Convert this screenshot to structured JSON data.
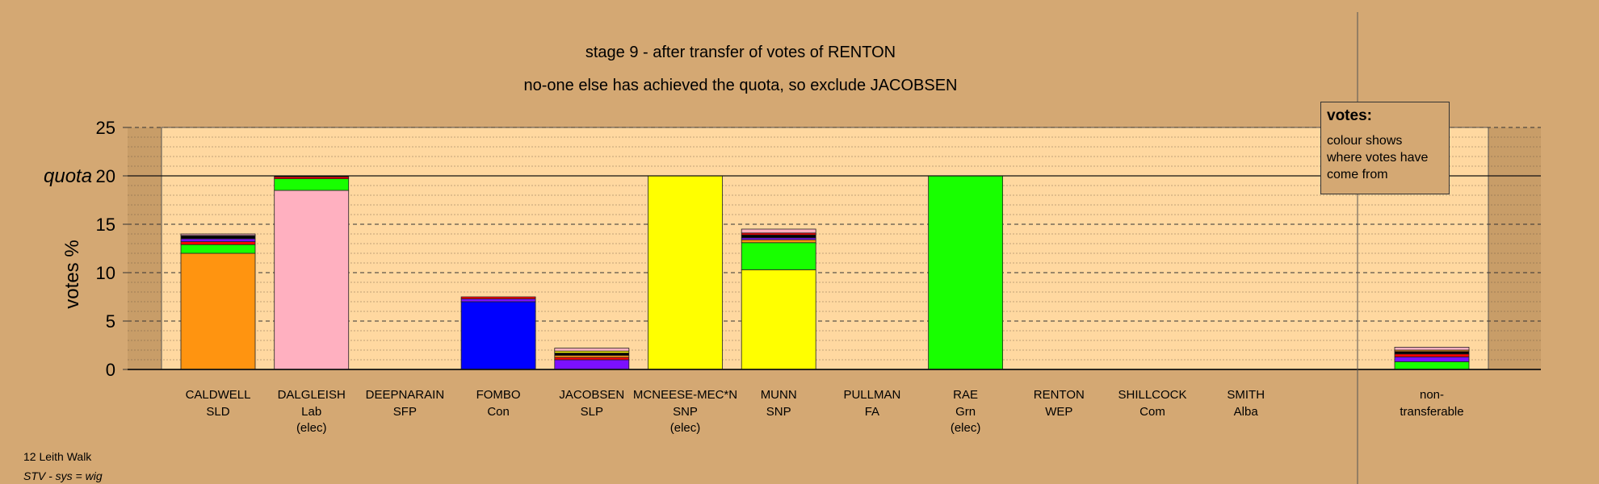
{
  "chart_data": {
    "type": "bar",
    "stacked": true,
    "title": "stage 9 - after transfer of votes of RENTON",
    "subtitle": "no-one else has achieved the quota, so exclude JACOBSEN",
    "ylabel": "votes %",
    "ylim": [
      0,
      25
    ],
    "yticks": [
      "0",
      "5",
      "10",
      "15",
      "20",
      "25"
    ],
    "quota": 20,
    "quota_label": "quota",
    "grid": true,
    "legend_position": "top-right",
    "candidates": [
      {
        "name": "CALDWELL",
        "party": "SLD",
        "note": "",
        "segments": [
          {
            "value": 12.0,
            "color": "#ff9410"
          },
          {
            "value": 0.9,
            "color": "#18ff00"
          },
          {
            "value": 0.3,
            "color": "#ff0000"
          },
          {
            "value": 0.3,
            "color": "#7b10ff"
          },
          {
            "value": 0.3,
            "color": "#000000"
          },
          {
            "value": 0.05,
            "color": "#ffff00"
          },
          {
            "value": 0.15,
            "color": "#ffb0c0"
          }
        ]
      },
      {
        "name": "DALGLEISH",
        "party": "Lab",
        "note": "(elec)",
        "segments": [
          {
            "value": 18.5,
            "color": "#ffb0c0"
          },
          {
            "value": 1.2,
            "color": "#18ff00"
          },
          {
            "value": 0.2,
            "color": "#ff0000"
          },
          {
            "value": 0.1,
            "color": "#000000"
          }
        ]
      },
      {
        "name": "DEEPNARAIN",
        "party": "SFP",
        "note": "",
        "segments": []
      },
      {
        "name": "FOMBO",
        "party": "Con",
        "note": "",
        "segments": [
          {
            "value": 7.0,
            "color": "#0000ff"
          },
          {
            "value": 0.3,
            "color": "#7b10ff"
          },
          {
            "value": 0.2,
            "color": "#ff0000"
          }
        ]
      },
      {
        "name": "JACOBSEN",
        "party": "SLP",
        "note": "",
        "segments": [
          {
            "value": 1.0,
            "color": "#7b10ff"
          },
          {
            "value": 0.25,
            "color": "#ff0000"
          },
          {
            "value": 0.2,
            "color": "#ff9410"
          },
          {
            "value": 0.25,
            "color": "#000000"
          },
          {
            "value": 0.2,
            "color": "#ffff00"
          },
          {
            "value": 0.3,
            "color": "#ffb0c0"
          }
        ]
      },
      {
        "name": "MCNEESE-MEC*N",
        "party": "SNP",
        "note": "(elec)",
        "segments": [
          {
            "value": 20.0,
            "color": "#ffff00"
          }
        ]
      },
      {
        "name": "MUNN",
        "party": "SNP",
        "note": "",
        "segments": [
          {
            "value": 10.3,
            "color": "#ffff00"
          },
          {
            "value": 2.8,
            "color": "#18ff00"
          },
          {
            "value": 0.3,
            "color": "#ff9410"
          },
          {
            "value": 0.2,
            "color": "#7b10ff"
          },
          {
            "value": 0.3,
            "color": "#000000"
          },
          {
            "value": 0.2,
            "color": "#ff0000"
          },
          {
            "value": 0.4,
            "color": "#ffb0c0"
          }
        ]
      },
      {
        "name": "PULLMAN",
        "party": "FA",
        "note": "",
        "segments": []
      },
      {
        "name": "RAE",
        "party": "Grn",
        "note": "(elec)",
        "segments": [
          {
            "value": 20.0,
            "color": "#18ff00"
          }
        ]
      },
      {
        "name": "RENTON",
        "party": "WEP",
        "note": "",
        "segments": []
      },
      {
        "name": "SHILLCOCK",
        "party": "Com",
        "note": "",
        "segments": []
      },
      {
        "name": "SMITH",
        "party": "Alba",
        "note": "",
        "segments": []
      }
    ],
    "non_transferable": {
      "line1": "non-",
      "line2": "transferable",
      "segments": [
        {
          "value": 0.8,
          "color": "#18ff00"
        },
        {
          "value": 0.5,
          "color": "#7b10ff"
        },
        {
          "value": 0.3,
          "color": "#ff0000"
        },
        {
          "value": 0.25,
          "color": "#000000"
        },
        {
          "value": 0.15,
          "color": "#ff9410"
        },
        {
          "value": 0.3,
          "color": "#ffb0c0"
        }
      ]
    }
  },
  "legend": {
    "title": "votes:",
    "body": "colour shows where votes have come from"
  },
  "footer": {
    "ward": "12 Leith Walk",
    "system": "STV - sys = wig"
  }
}
